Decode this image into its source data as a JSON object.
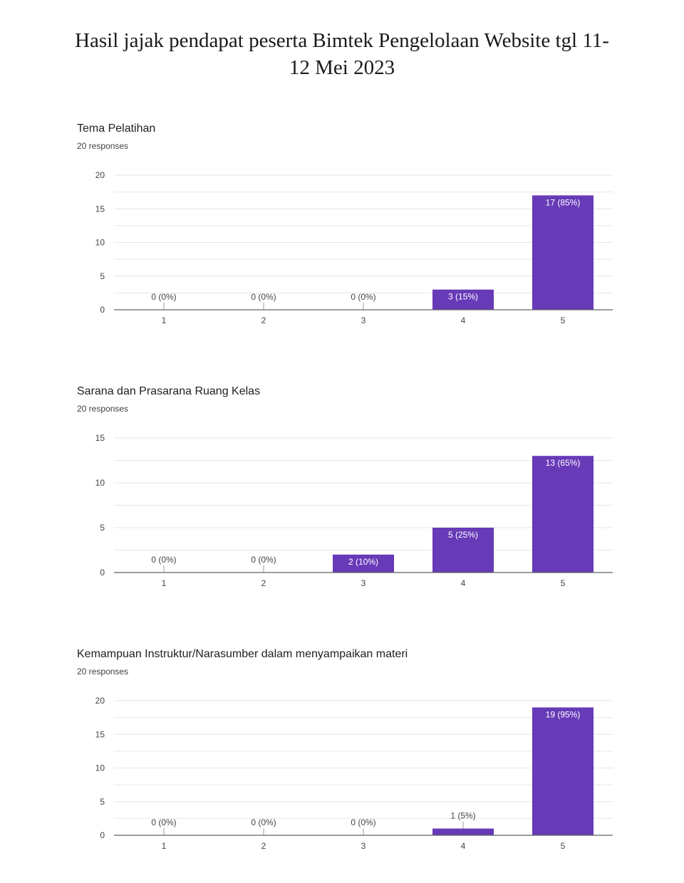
{
  "page": {
    "title_line1": "Hasil jajak pendapat peserta Bimtek Pengelolaan Website tgl 11-",
    "title_line2": "12 Mei 2023"
  },
  "colors": {
    "bar": "#673ab7",
    "grid": "#e6e6e6",
    "axis": "#5f6368",
    "label": "#444444"
  },
  "chart_data": [
    {
      "type": "bar",
      "title": "Tema Pelatihan",
      "subtitle": "20 responses",
      "categories": [
        "1",
        "2",
        "3",
        "4",
        "5"
      ],
      "values": [
        0,
        0,
        0,
        3,
        17
      ],
      "labels": [
        "0 (0%)",
        "0 (0%)",
        "0 (0%)",
        "3 (15%)",
        "17 (85%)"
      ],
      "ylim": [
        0,
        20
      ],
      "yticks": [
        0,
        5,
        10,
        15,
        20
      ],
      "grid": true
    },
    {
      "type": "bar",
      "title": "Sarana dan Prasarana Ruang Kelas",
      "subtitle": "20 responses",
      "categories": [
        "1",
        "2",
        "3",
        "4",
        "5"
      ],
      "values": [
        0,
        0,
        2,
        5,
        13
      ],
      "labels": [
        "0 (0%)",
        "0 (0%)",
        "2 (10%)",
        "5 (25%)",
        "13 (65%)"
      ],
      "ylim": [
        0,
        15
      ],
      "yticks": [
        0,
        5,
        10,
        15
      ],
      "grid": true
    },
    {
      "type": "bar",
      "title": "Kemampuan Instruktur/Narasumber dalam menyampaikan materi",
      "subtitle": "20 responses",
      "categories": [
        "1",
        "2",
        "3",
        "4",
        "5"
      ],
      "values": [
        0,
        0,
        0,
        1,
        19
      ],
      "labels": [
        "0 (0%)",
        "0 (0%)",
        "0 (0%)",
        "1 (5%)",
        "19 (95%)"
      ],
      "ylim": [
        0,
        20
      ],
      "yticks": [
        0,
        5,
        10,
        15,
        20
      ],
      "grid": true
    }
  ]
}
